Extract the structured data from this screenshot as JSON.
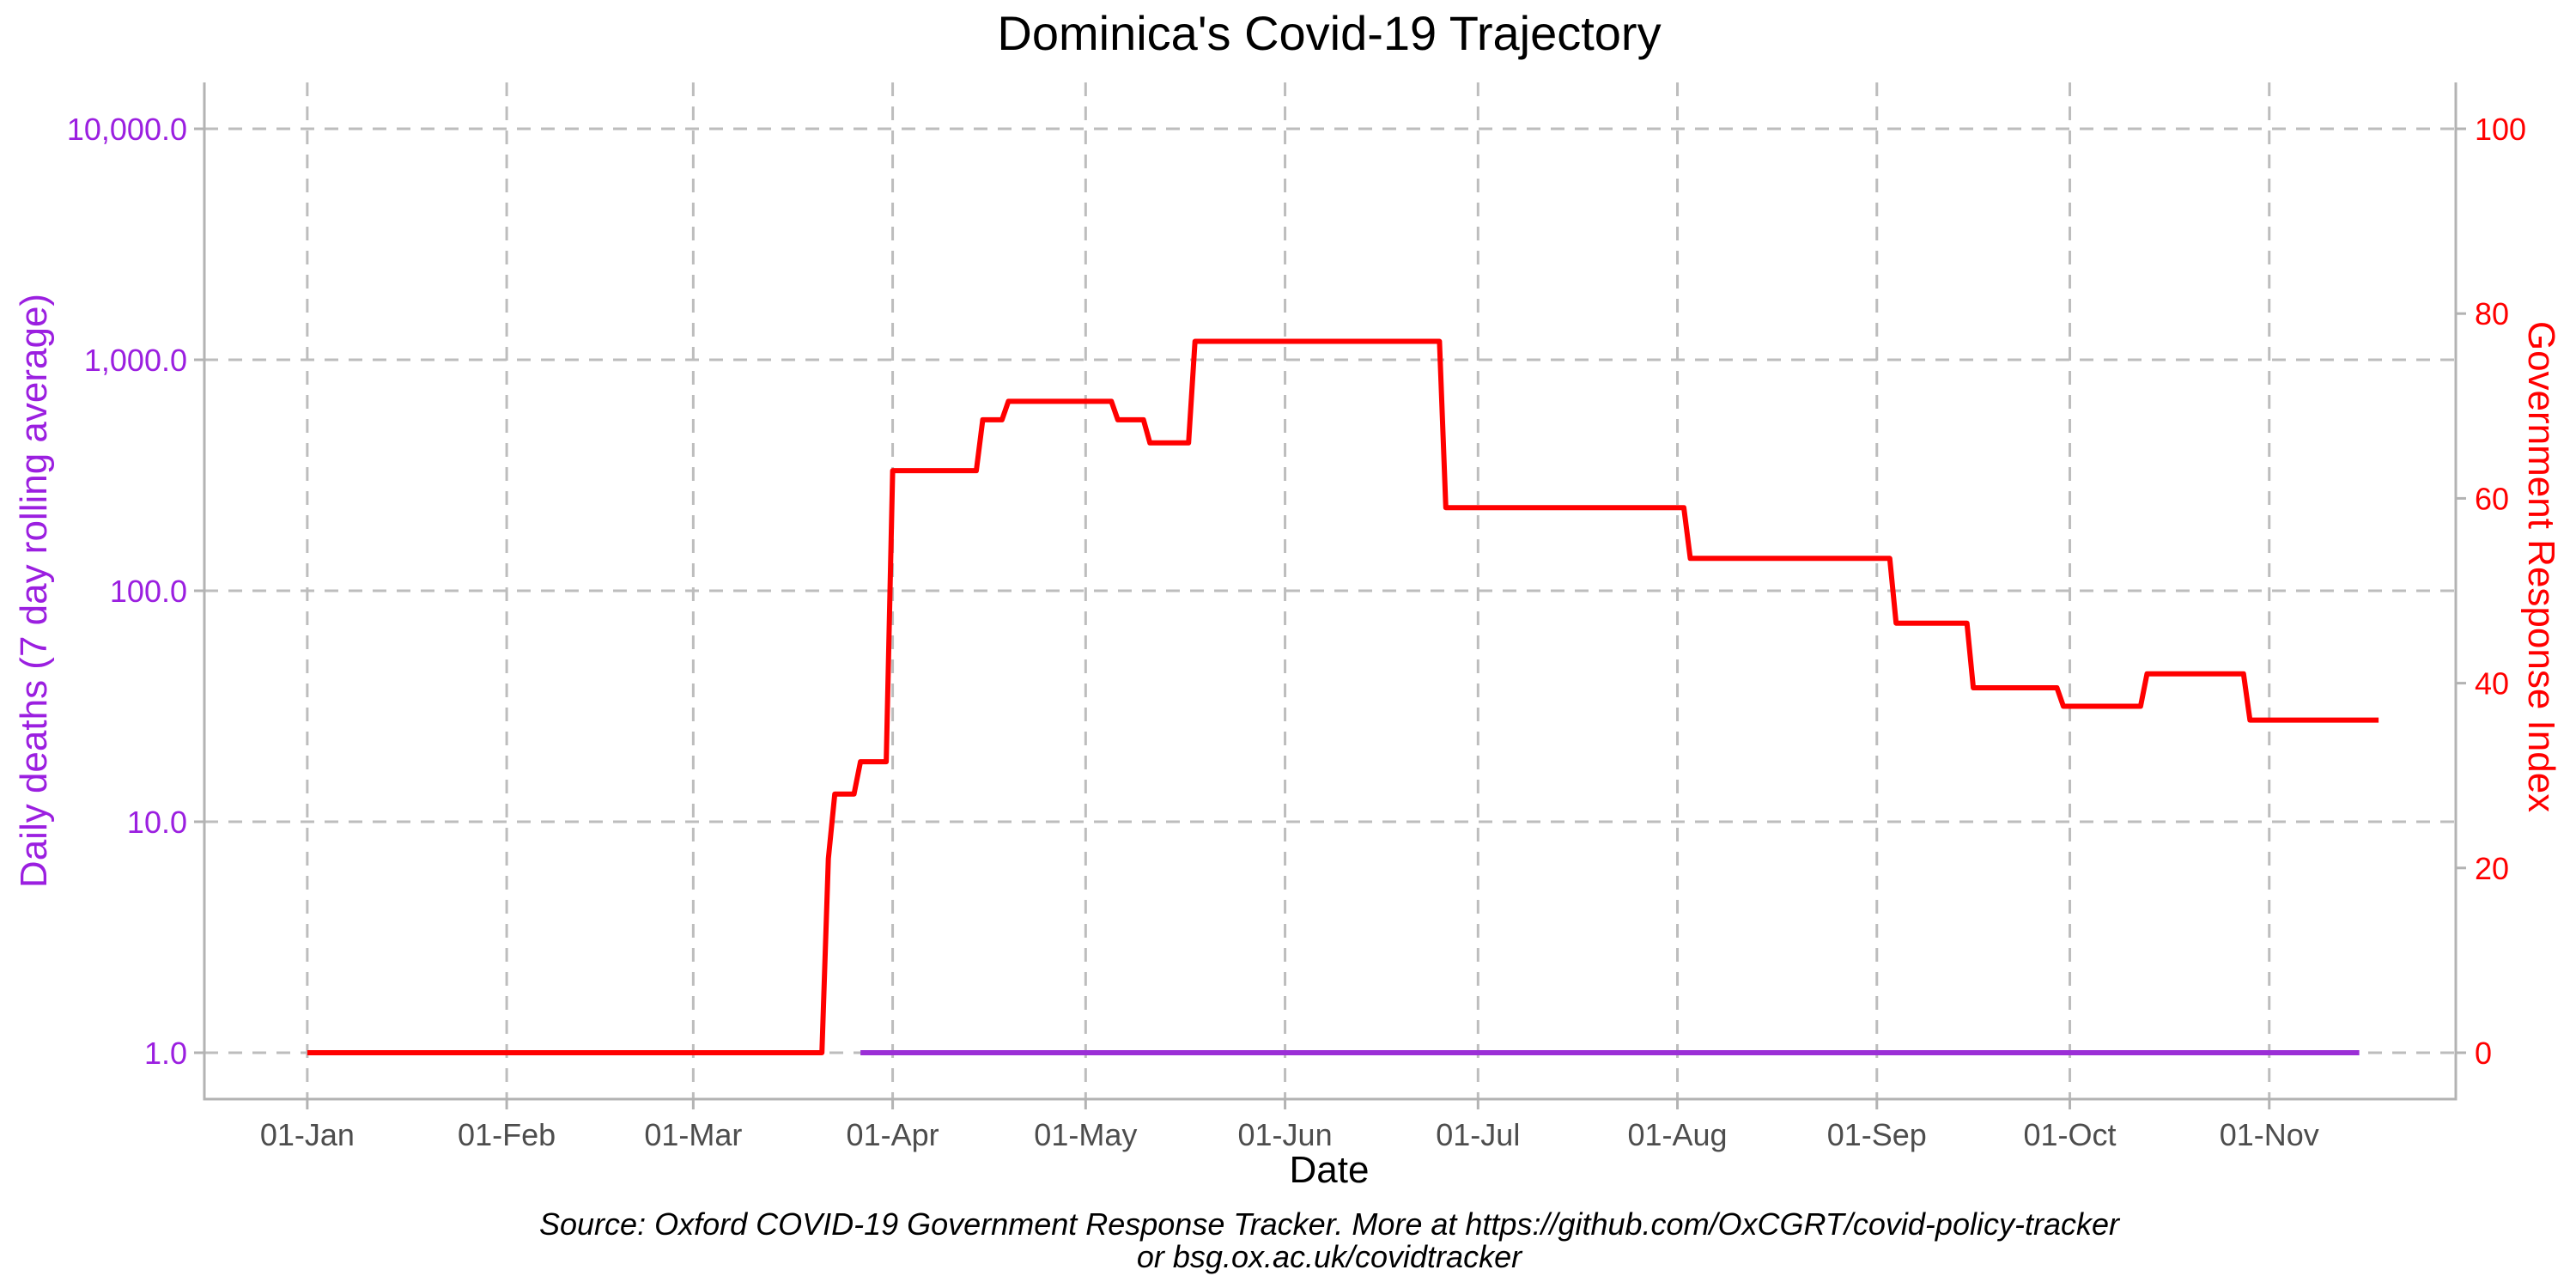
{
  "chart_data": {
    "type": "line",
    "title": "Dominica's Covid-19 Trajectory",
    "xlabel": "Date",
    "ylabel_left": "Daily deaths (7 day rolling average)",
    "ylabel_right": "Government Response Index",
    "caption_line1": "Source: Oxford COVID-19 Government Response Tracker. More at https://github.com/OxCGRT/covid-policy-tracker",
    "caption_line2": "or bsg.ox.ac.uk/covidtracker",
    "x_domain": [
      "2019-12-16",
      "2020-11-30"
    ],
    "x_ticks": [
      {
        "date": "2020-01-01",
        "label": "01-Jan"
      },
      {
        "date": "2020-02-01",
        "label": "01-Feb"
      },
      {
        "date": "2020-03-01",
        "label": "01-Mar"
      },
      {
        "date": "2020-04-01",
        "label": "01-Apr"
      },
      {
        "date": "2020-05-01",
        "label": "01-May"
      },
      {
        "date": "2020-06-01",
        "label": "01-Jun"
      },
      {
        "date": "2020-07-01",
        "label": "01-Jul"
      },
      {
        "date": "2020-08-01",
        "label": "01-Aug"
      },
      {
        "date": "2020-09-01",
        "label": "01-Sep"
      },
      {
        "date": "2020-10-01",
        "label": "01-Oct"
      },
      {
        "date": "2020-11-01",
        "label": "01-Nov"
      }
    ],
    "y_left": {
      "scale": "log",
      "range": [
        1,
        10000
      ],
      "ticks": [
        {
          "value": 1,
          "label": "1.0"
        },
        {
          "value": 10,
          "label": "10.0"
        },
        {
          "value": 100,
          "label": "100.0"
        },
        {
          "value": 1000,
          "label": "1,000.0"
        },
        {
          "value": 10000,
          "label": "10,000.0"
        }
      ],
      "color": "#9b1fe0"
    },
    "y_right": {
      "scale": "linear",
      "range": [
        0,
        100
      ],
      "ticks": [
        {
          "value": 0,
          "label": "0"
        },
        {
          "value": 20,
          "label": "20"
        },
        {
          "value": 40,
          "label": "40"
        },
        {
          "value": 60,
          "label": "60"
        },
        {
          "value": 80,
          "label": "80"
        },
        {
          "value": 100,
          "label": "100"
        }
      ],
      "color": "#ff0000"
    },
    "grid": true,
    "series": [
      {
        "axis": "left",
        "color": "#9b2fd6",
        "points": [
          {
            "x": "2020-03-27",
            "y": 1
          },
          {
            "x": "2020-11-15",
            "y": 1
          }
        ]
      },
      {
        "axis": "right",
        "color": "#ff0000",
        "step": true,
        "points": [
          {
            "x": "2020-01-01",
            "y": 0
          },
          {
            "x": "2020-03-21",
            "y": 0
          },
          {
            "x": "2020-03-22",
            "y": 21
          },
          {
            "x": "2020-03-23",
            "y": 28
          },
          {
            "x": "2020-03-27",
            "y": 31.5
          },
          {
            "x": "2020-03-30",
            "y": 31.5
          },
          {
            "x": "2020-04-01",
            "y": 63
          },
          {
            "x": "2020-04-15",
            "y": 68.5
          },
          {
            "x": "2020-04-19",
            "y": 70.5
          },
          {
            "x": "2020-05-06",
            "y": 68.5
          },
          {
            "x": "2020-05-11",
            "y": 66
          },
          {
            "x": "2020-05-18",
            "y": 77
          },
          {
            "x": "2020-06-26",
            "y": 59
          },
          {
            "x": "2020-08-03",
            "y": 53.5
          },
          {
            "x": "2020-09-04",
            "y": 46.5
          },
          {
            "x": "2020-09-16",
            "y": 39.5
          },
          {
            "x": "2020-09-30",
            "y": 37.5
          },
          {
            "x": "2020-10-13",
            "y": 41
          },
          {
            "x": "2020-10-29",
            "y": 36
          },
          {
            "x": "2020-11-18",
            "y": 36
          }
        ]
      }
    ]
  }
}
